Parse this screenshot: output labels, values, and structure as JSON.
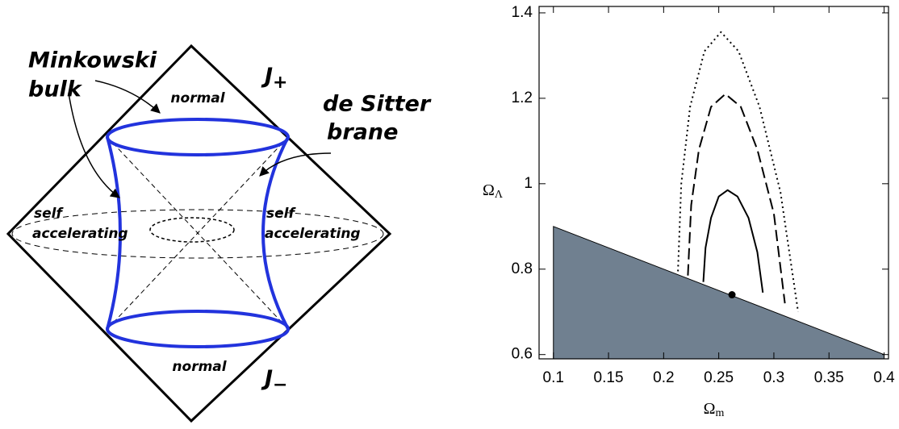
{
  "diagram": {
    "labels": {
      "minkowski": "Minkowski",
      "bulk": "bulk",
      "de_sitter": "de Sitter",
      "brane": "brane",
      "normal_top": "normal",
      "normal_bottom": "normal",
      "self_left": "self",
      "accel_left": "accelerating",
      "self_right": "self",
      "accel_right": "accelerating",
      "j_plus": {
        "symbol": "J",
        "sub": "+"
      },
      "j_minus": {
        "symbol": "J",
        "sub": "−"
      }
    }
  },
  "chart_data": {
    "type": "contour",
    "xlabel": {
      "symbol": "Ω",
      "sub": "m"
    },
    "ylabel": {
      "symbol": "Ω",
      "sub": "Λ"
    },
    "xlim": [
      0.087,
      0.404
    ],
    "ylim": [
      0.59,
      1.415
    ],
    "xticks": [
      0.1,
      0.15,
      0.2,
      0.25,
      0.3,
      0.35,
      0.4
    ],
    "yticks": [
      0.6,
      0.8,
      1,
      1.2,
      1.4
    ],
    "excluded_region": {
      "color": "#708090",
      "x": [
        0.1,
        0.4
      ],
      "y": [
        0.9,
        0.6
      ]
    },
    "best_fit": {
      "x": 0.262,
      "y": 0.74
    },
    "series": [
      {
        "style": "solid",
        "color": "#000000",
        "x": [
          0.236,
          0.238,
          0.243,
          0.25,
          0.258,
          0.267,
          0.277,
          0.285,
          0.29
        ],
        "values": [
          0.77,
          0.85,
          0.92,
          0.97,
          0.985,
          0.97,
          0.92,
          0.84,
          0.745
        ]
      },
      {
        "style": "dashed",
        "color": "#000000",
        "x": [
          0.222,
          0.225,
          0.232,
          0.243,
          0.256,
          0.27,
          0.285,
          0.3,
          0.31
        ],
        "values": [
          0.785,
          0.95,
          1.08,
          1.18,
          1.21,
          1.18,
          1.08,
          0.93,
          0.72
        ]
      },
      {
        "style": "dotted",
        "color": "#000000",
        "x": [
          0.213,
          0.216,
          0.224,
          0.237,
          0.252,
          0.268,
          0.287,
          0.306,
          0.322
        ],
        "values": [
          0.795,
          1.0,
          1.18,
          1.31,
          1.355,
          1.31,
          1.18,
          0.98,
          0.7
        ]
      }
    ]
  }
}
